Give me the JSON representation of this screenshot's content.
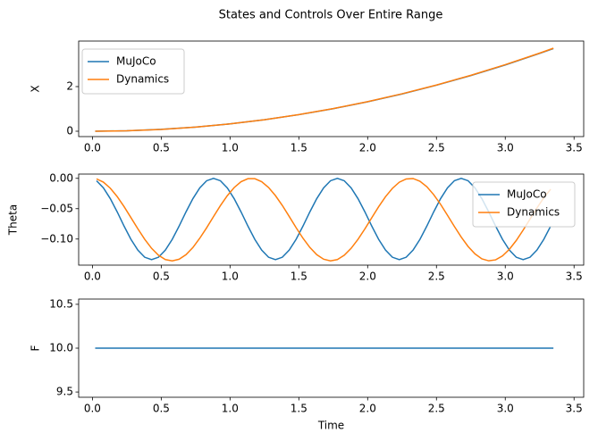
{
  "title": "States and Controls Over Entire Range",
  "chart_data": [
    {
      "type": "line",
      "ylabel": "X",
      "legend": "upper left",
      "x": [
        0.02,
        0.25,
        0.5,
        0.75,
        1.0,
        1.25,
        1.5,
        1.75,
        2.0,
        2.25,
        2.5,
        2.75,
        3.0,
        3.25,
        3.35
      ],
      "series": [
        {
          "name": "MuJoCo",
          "color": "#1f77b4",
          "values": [
            0.0,
            0.021,
            0.083,
            0.186,
            0.33,
            0.516,
            0.743,
            1.011,
            1.32,
            1.671,
            2.063,
            2.496,
            2.97,
            3.486,
            3.703
          ]
        },
        {
          "name": "Dynamics",
          "color": "#ff7f0e",
          "values": [
            0.0,
            0.02,
            0.082,
            0.185,
            0.33,
            0.517,
            0.745,
            1.015,
            1.325,
            1.678,
            2.071,
            2.506,
            2.983,
            3.5,
            3.72
          ]
        }
      ],
      "xlim": [
        -0.1,
        3.57
      ],
      "ylim": [
        -0.24,
        4.04
      ],
      "xticks": [
        {
          "value": 0,
          "label": "0.0"
        },
        0.5,
        {
          "value": 1,
          "label": "1.0"
        },
        1.5,
        {
          "value": 2,
          "label": "2.0"
        },
        2.5,
        {
          "value": 3,
          "label": "3.0"
        },
        3.5
      ],
      "yticks": [
        0,
        2
      ]
    },
    {
      "type": "line",
      "ylabel": "Theta",
      "legend": "upper right",
      "x": [
        0.03,
        0.08,
        0.13,
        0.18,
        0.23,
        0.28,
        0.33,
        0.38,
        0.43,
        0.48,
        0.53,
        0.58,
        0.63,
        0.68,
        0.73,
        0.78,
        0.83,
        0.88,
        0.93,
        0.98,
        1.03,
        1.08,
        1.13,
        1.18,
        1.23,
        1.28,
        1.33,
        1.38,
        1.43,
        1.48,
        1.53,
        1.58,
        1.63,
        1.68,
        1.73,
        1.78,
        1.83,
        1.88,
        1.93,
        1.98,
        2.03,
        2.08,
        2.13,
        2.18,
        2.23,
        2.28,
        2.33,
        2.38,
        2.43,
        2.48,
        2.53,
        2.58,
        2.63,
        2.68,
        2.73,
        2.78,
        2.83,
        2.88,
        2.93,
        2.98,
        3.03,
        3.08,
        3.13,
        3.18,
        3.23,
        3.28,
        3.33
      ],
      "series": [
        {
          "name": "MuJoCo",
          "color": "#1f77b4",
          "values": [
            -0.004,
            -0.0157,
            -0.0335,
            -0.0553,
            -0.0787,
            -0.1005,
            -0.1183,
            -0.13,
            -0.134,
            -0.13,
            -0.1183,
            -0.1005,
            -0.0787,
            -0.0553,
            -0.0335,
            -0.0157,
            -0.004,
            0,
            -0.004,
            -0.0157,
            -0.0335,
            -0.0553,
            -0.0787,
            -0.1005,
            -0.1183,
            -0.13,
            -0.134,
            -0.13,
            -0.1183,
            -0.1005,
            -0.0787,
            -0.0553,
            -0.0335,
            -0.0157,
            -0.004,
            0,
            -0.004,
            -0.0157,
            -0.0335,
            -0.0553,
            -0.0787,
            -0.1005,
            -0.1183,
            -0.13,
            -0.134,
            -0.13,
            -0.1183,
            -0.1005,
            -0.0787,
            -0.0553,
            -0.0335,
            -0.0157,
            -0.004,
            0,
            -0.004,
            -0.0157,
            -0.0335,
            -0.0553,
            -0.0787,
            -0.1005,
            -0.1183,
            -0.13,
            -0.134,
            -0.13,
            -0.1183,
            -0.1005,
            -0.0787
          ]
        },
        {
          "name": "Dynamics",
          "color": "#ff7f0e",
          "values": [
            -0.0009,
            -0.0063,
            -0.0163,
            -0.0301,
            -0.0466,
            -0.0648,
            -0.0831,
            -0.1004,
            -0.1153,
            -0.1266,
            -0.1338,
            -0.136,
            -0.1333,
            -0.1257,
            -0.114,
            -0.0987,
            -0.0815,
            -0.063,
            -0.0449,
            -0.0286,
            -0.0152,
            -0.0056,
            -0.0006,
            -0.0006,
            -0.0056,
            -0.0151,
            -0.0285,
            -0.0447,
            -0.0628,
            -0.0812,
            -0.0987,
            -0.1138,
            -0.1257,
            -0.1332,
            -0.136,
            -0.1338,
            -0.1267,
            -0.1153,
            -0.1004,
            -0.0833,
            -0.0649,
            -0.0468,
            -0.0302,
            -0.0165,
            -0.0064,
            -0.001,
            -0.0003,
            -0.0048,
            -0.0138,
            -0.0269,
            -0.0428,
            -0.0608,
            -0.0792,
            -0.0968,
            -0.1123,
            -0.1245,
            -0.1326,
            -0.1359,
            -0.1343,
            -0.1278,
            -0.1169,
            -0.1024,
            -0.0853,
            -0.0672,
            -0.0489,
            -0.0321,
            -0.018
          ]
        }
      ],
      "xlim": [
        -0.1,
        3.57
      ],
      "ylim": [
        -0.143,
        0.007
      ],
      "xticks": [
        {
          "value": 0,
          "label": "0.0"
        },
        0.5,
        {
          "value": 1,
          "label": "1.0"
        },
        1.5,
        {
          "value": 2,
          "label": "2.0"
        },
        2.5,
        {
          "value": 3,
          "label": "3.0"
        },
        3.5
      ],
      "yticks": [
        {
          "value": 0,
          "label": "0.00"
        },
        {
          "value": -0.05,
          "label": "−0.05"
        },
        {
          "value": -0.1,
          "label": "−0.10"
        }
      ]
    },
    {
      "type": "line",
      "ylabel": "F",
      "xlabel": "Time",
      "x": [
        0.02,
        3.35
      ],
      "series": [
        {
          "color": "#1f77b4",
          "values": [
            10,
            10
          ]
        }
      ],
      "xlim": [
        -0.1,
        3.57
      ],
      "ylim": [
        9.44,
        10.56
      ],
      "xticks": [
        {
          "value": 0,
          "label": "0.0"
        },
        0.5,
        {
          "value": 1,
          "label": "1.0"
        },
        1.5,
        {
          "value": 2,
          "label": "2.0"
        },
        2.5,
        {
          "value": 3,
          "label": "3.0"
        },
        3.5
      ],
      "yticks": [
        9.5,
        {
          "value": 10,
          "label": "10.0"
        },
        10.5
      ]
    }
  ]
}
